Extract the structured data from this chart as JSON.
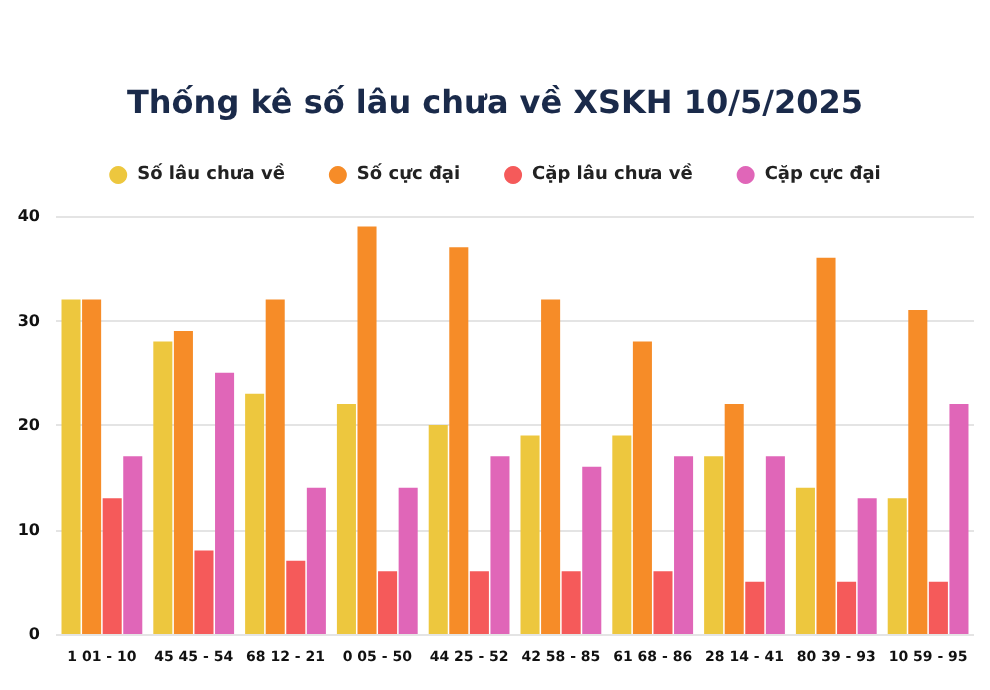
{
  "chart_data": {
    "type": "bar",
    "title": "Thống kê số lâu chưa về XSKH 10/5/2025",
    "categories": [
      "1 01 - 10",
      "45 45 - 54",
      "68 12 - 21",
      "0 05 - 50",
      "44 25 - 52",
      "42 58 - 85",
      "61 68 - 86",
      "28 14 - 41",
      "80 39 - 93",
      "10 59 - 95"
    ],
    "series": [
      {
        "name": "Số lâu chưa về",
        "color": "#edc73e",
        "values": [
          32,
          28,
          23,
          22,
          20,
          19,
          19,
          17,
          14,
          13
        ]
      },
      {
        "name": "Số cực đại",
        "color": "#f68c28",
        "values": [
          32,
          29,
          32,
          39,
          37,
          32,
          28,
          22,
          36,
          31
        ]
      },
      {
        "name": "Cặp lâu chưa về",
        "color": "#f55a5a",
        "values": [
          13,
          8,
          7,
          6,
          6,
          6,
          6,
          5,
          5,
          5
        ]
      },
      {
        "name": "Cặp cực đại",
        "color": "#e066b8",
        "values": [
          17,
          25,
          14,
          14,
          17,
          16,
          17,
          17,
          13,
          22
        ]
      }
    ],
    "ylim": [
      0,
      40
    ],
    "yticks": [
      0,
      10,
      20,
      30,
      40
    ],
    "grid": "y",
    "legend": "top",
    "marker": "circle"
  }
}
